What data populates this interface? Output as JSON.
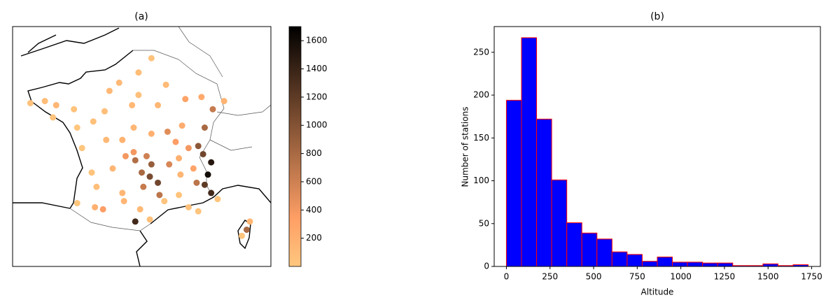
{
  "chart_data": [
    {
      "type": "map-scatter",
      "title": "(a)",
      "colormap": "copper_r",
      "xlim": [
        -5.5,
        10.5
      ],
      "ylim": [
        40.4,
        52.15
      ],
      "clim": [
        0,
        1700
      ],
      "cticks": [
        200,
        400,
        600,
        800,
        1000,
        1200,
        1400,
        1600
      ],
      "x": [
        -4.4,
        -3.5,
        -2.8,
        -1.7,
        -0.5,
        -1.5,
        0.2,
        1.1,
        2.3,
        3.1,
        2.3,
        4.0,
        3.5,
        5.2,
        6.2,
        7.6,
        6.9,
        6.4,
        5.0,
        4.1,
        3.1,
        2.0,
        1.3,
        0.3,
        -1.2,
        -0.6,
        0.7,
        1.5,
        2.1,
        2.8,
        3.1,
        2.5,
        3.0,
        3.5,
        2.6,
        4.2,
        4.8,
        5.7,
        6.3,
        6.8,
        6.6,
        6.4,
        6.8,
        5.4,
        6.0,
        7.2,
        4.8,
        3.9,
        2.4,
        3.0,
        2.1,
        1.4,
        0.1,
        -0.4,
        -1.5,
        -0.3,
        1.3,
        4.6,
        5.4,
        6.0,
        8.7,
        9.2,
        9.0,
        -3.0,
        0.5,
        1.9,
        4.9,
        2.0,
        5.9,
        3.6
      ],
      "y": [
        48.4,
        48.5,
        48.3,
        48.1,
        47.5,
        47.2,
        48.0,
        49.4,
        48.8,
        50.6,
        49.9,
        49.3,
        48.3,
        48.6,
        48.7,
        48.5,
        48.1,
        47.2,
        47.3,
        47.0,
        46.9,
        47.2,
        46.6,
        46.6,
        46.2,
        45.0,
        45.2,
        45.8,
        45.6,
        45.8,
        45.4,
        45.0,
        44.8,
        44.5,
        44.3,
        45.4,
        45.7,
        45.2,
        45.9,
        45.5,
        44.9,
        44.4,
        44.0,
        43.3,
        43.1,
        43.7,
        43.9,
        43.6,
        43.2,
        42.7,
        42.6,
        43.6,
        43.2,
        43.3,
        43.5,
        44.3,
        44.0,
        46.5,
        46.2,
        46.3,
        41.9,
        42.6,
        42.2,
        47.7,
        49.0,
        48.3,
        44.9,
        46.0,
        44.5,
        43.9
      ],
      "values": [
        50,
        80,
        150,
        40,
        60,
        20,
        70,
        120,
        60,
        40,
        90,
        100,
        140,
        300,
        250,
        160,
        650,
        800,
        230,
        500,
        200,
        150,
        180,
        120,
        10,
        40,
        150,
        400,
        750,
        600,
        900,
        800,
        1050,
        1100,
        650,
        550,
        200,
        300,
        1100,
        1500,
        1600,
        1200,
        1350,
        50,
        30,
        30,
        40,
        30,
        120,
        60,
        1350,
        150,
        350,
        200,
        10,
        70,
        150,
        350,
        400,
        950,
        20,
        150,
        800,
        40,
        130,
        130,
        150,
        400,
        700,
        700
      ]
    },
    {
      "type": "histogram",
      "title": "(b)",
      "xlabel": "Altitude",
      "ylabel": "Number of stations",
      "color": "#0000ff",
      "edgecolor": "#ff0000",
      "bins": [
        0,
        86.5,
        173,
        259.5,
        346,
        432.5,
        519,
        605.5,
        692,
        778.5,
        865,
        951.5,
        1038,
        1124.5,
        1211,
        1297.5,
        1384,
        1470.5,
        1557,
        1643.5,
        1730
      ],
      "values": [
        194,
        267,
        172,
        101,
        51,
        39,
        32,
        17,
        14,
        6,
        11,
        5,
        5,
        4,
        4,
        1,
        1,
        3,
        1,
        2
      ],
      "xlim": [
        -70,
        1800
      ],
      "xticks": [
        0,
        250,
        500,
        750,
        1000,
        1250,
        1500,
        1750
      ],
      "ylim": [
        0,
        280
      ],
      "yticks": [
        0,
        50,
        100,
        150,
        200,
        250
      ]
    }
  ]
}
